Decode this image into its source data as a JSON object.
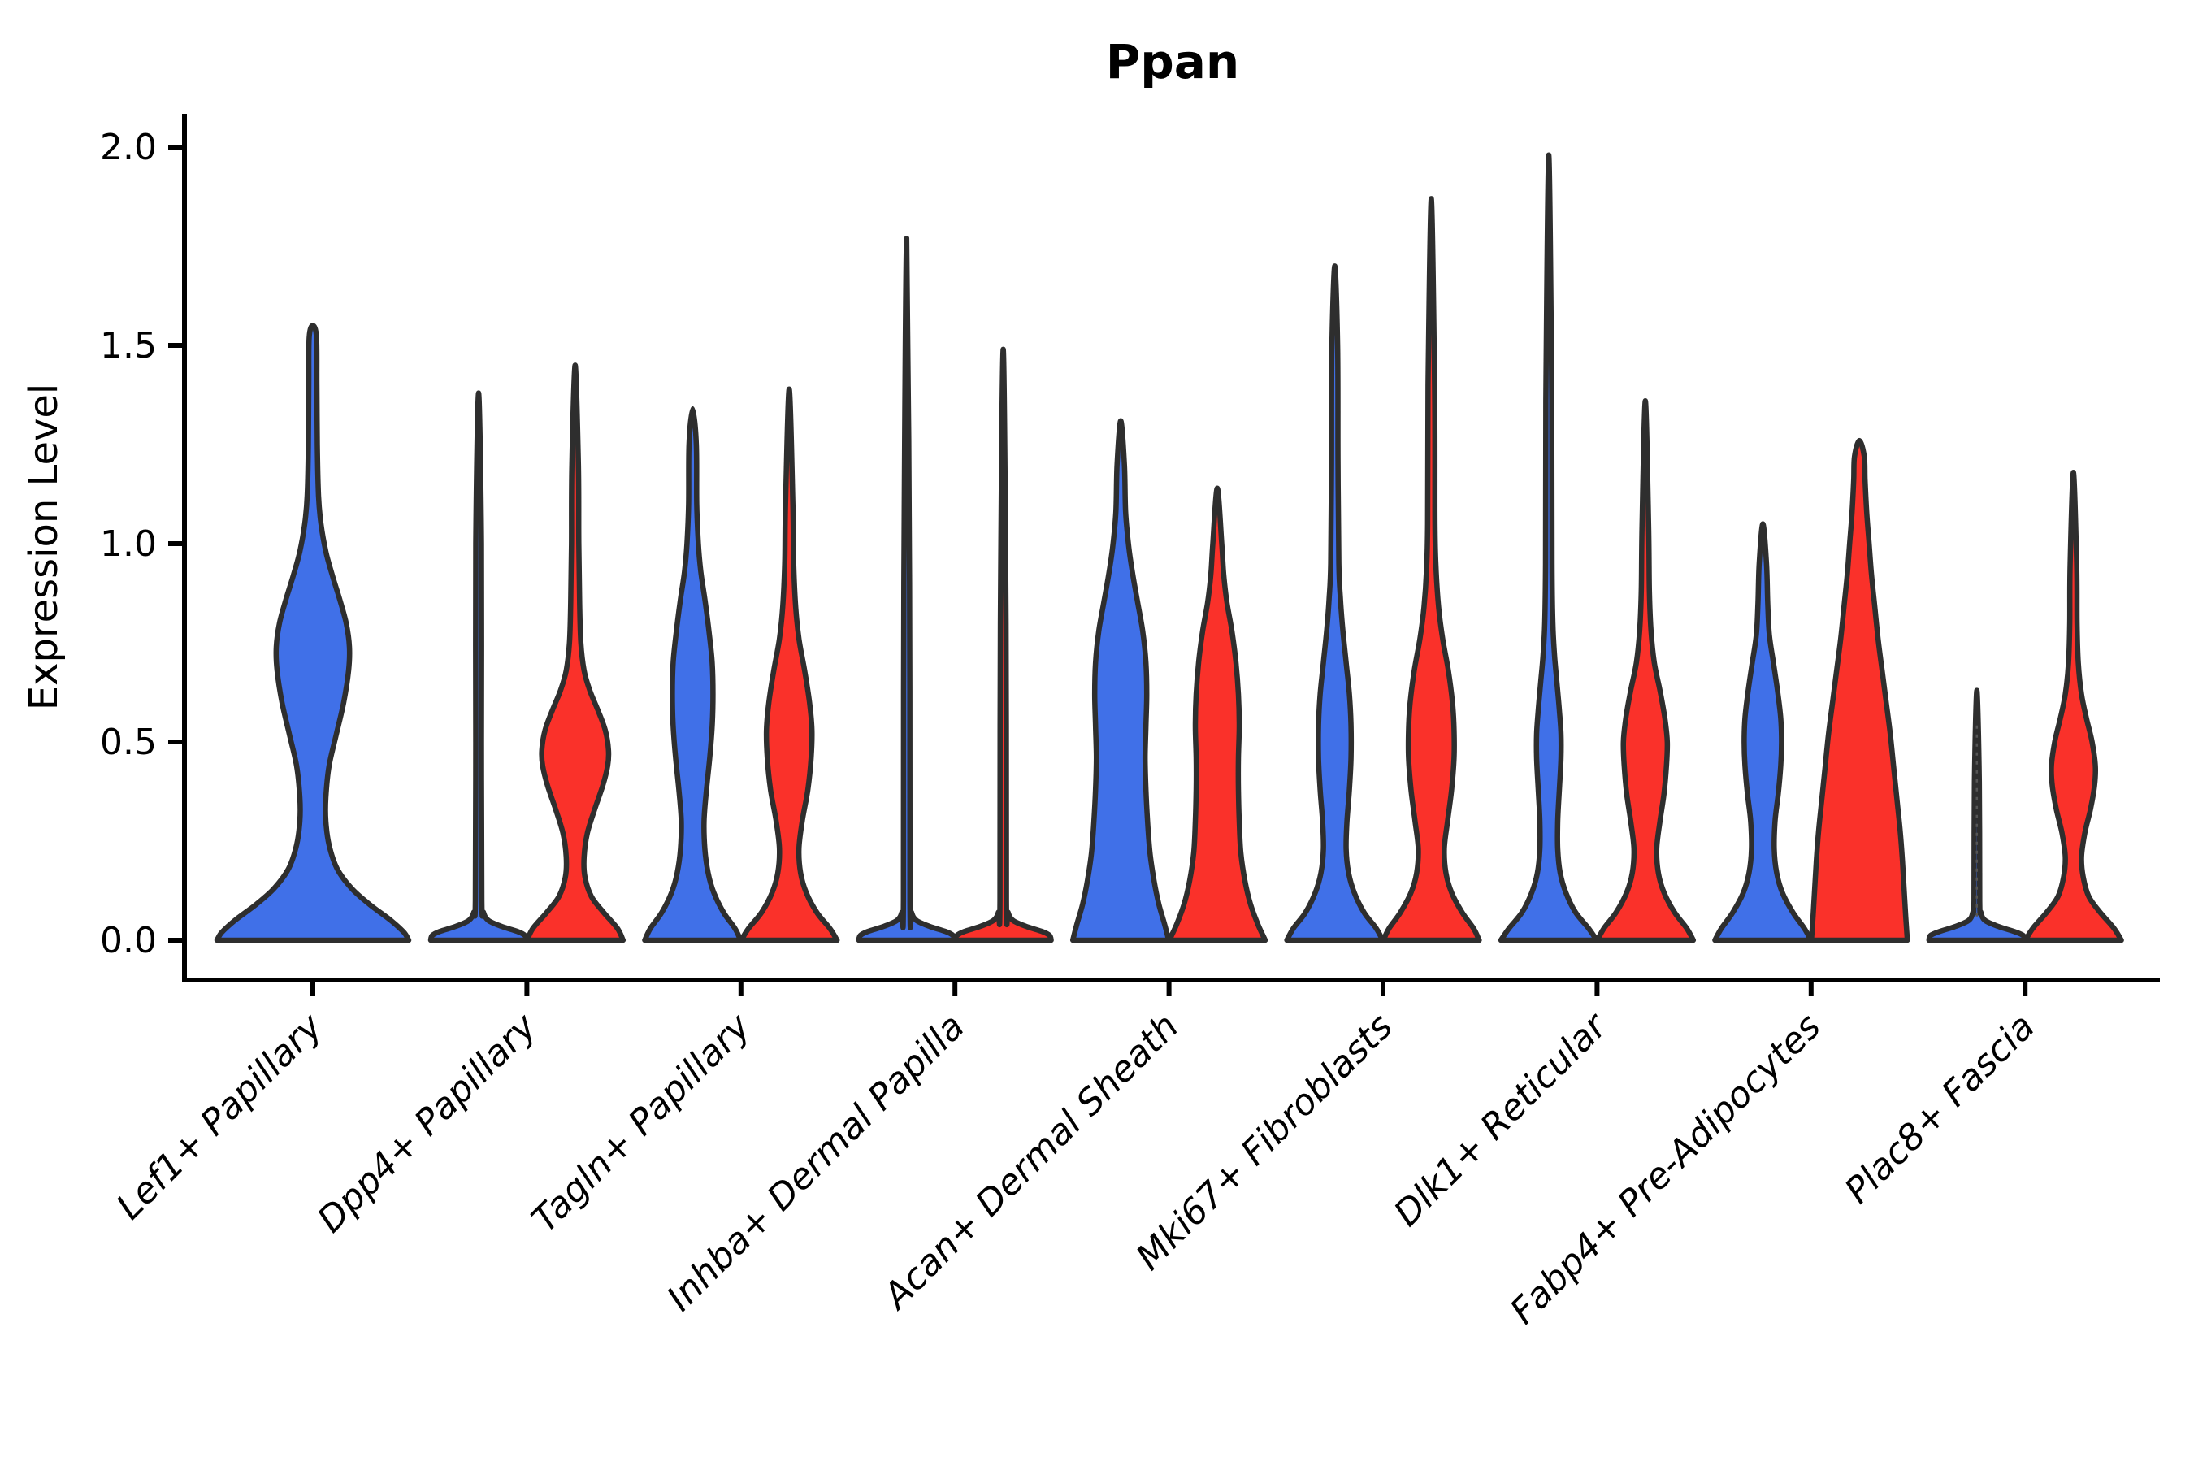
{
  "chart_data": {
    "type": "violin",
    "title": "Ppan",
    "ylabel": "Expression Level",
    "grid": false,
    "legend": "none",
    "ylim": [
      -0.1,
      2.08
    ],
    "yticks": [
      {
        "label": "0.0",
        "value": 0.0
      },
      {
        "label": "0.5",
        "value": 0.5
      },
      {
        "label": "1.0",
        "value": 1.0
      },
      {
        "label": "1.5",
        "value": 1.5
      },
      {
        "label": "2.0",
        "value": 2.0
      }
    ],
    "categories": [
      "Lef1+ Papillary",
      "Dpp4+ Papillary",
      "Tagln+ Papillary",
      "Inhba+ Dermal Papilla",
      "Acan+ Dermal Sheath",
      "Mki67+ Fibroblasts",
      "Dlk1+ Reticular",
      "Fabp4+ Pre-Adipocytes",
      "Plac8+ Fascia"
    ],
    "series": [
      {
        "name": "split-blue",
        "color": "#4070E8"
      },
      {
        "name": "split-red",
        "color": "#FA312A"
      }
    ],
    "outline_color": "#2E2E2E",
    "violins": [
      {
        "cat": 0,
        "series": "split-blue",
        "dx": 0,
        "max_value": 1.55,
        "profile": [
          [
            0,
            118
          ],
          [
            0.02,
            112
          ],
          [
            0.05,
            96
          ],
          [
            0.09,
            70
          ],
          [
            0.13,
            48
          ],
          [
            0.18,
            30
          ],
          [
            0.24,
            20
          ],
          [
            0.3,
            16
          ],
          [
            0.36,
            16
          ],
          [
            0.44,
            20
          ],
          [
            0.52,
            29
          ],
          [
            0.6,
            38
          ],
          [
            0.68,
            44
          ],
          [
            0.74,
            45
          ],
          [
            0.8,
            41
          ],
          [
            0.86,
            33
          ],
          [
            0.92,
            24
          ],
          [
            0.98,
            16
          ],
          [
            1.05,
            10
          ],
          [
            1.12,
            7
          ],
          [
            1.25,
            5.5
          ],
          [
            1.4,
            5
          ],
          [
            1.52,
            4.5
          ],
          [
            1.55,
            0
          ]
        ]
      },
      {
        "cat": 1,
        "series": "split-blue",
        "dx": -59.4,
        "max_value": 1.38,
        "profile": [
          [
            0,
            59
          ],
          [
            0.012,
            57
          ],
          [
            0.022,
            48
          ],
          [
            0.035,
            28
          ],
          [
            0.05,
            12
          ],
          [
            0.07,
            6
          ],
          [
            0.1,
            4
          ],
          [
            0.5,
            3.5
          ],
          [
            1.0,
            3.5
          ],
          [
            1.38,
            0
          ]
        ]
      },
      {
        "cat": 1,
        "series": "split-red",
        "dx": 59.4,
        "max_value": 1.45,
        "profile": [
          [
            0,
            59
          ],
          [
            0.03,
            52
          ],
          [
            0.07,
            35
          ],
          [
            0.11,
            20
          ],
          [
            0.16,
            12
          ],
          [
            0.21,
            11
          ],
          [
            0.27,
            15
          ],
          [
            0.33,
            24
          ],
          [
            0.39,
            34
          ],
          [
            0.44,
            40
          ],
          [
            0.48,
            41
          ],
          [
            0.53,
            37
          ],
          [
            0.58,
            28
          ],
          [
            0.63,
            18
          ],
          [
            0.68,
            11
          ],
          [
            0.75,
            7
          ],
          [
            0.85,
            5.5
          ],
          [
            1.0,
            4.5
          ],
          [
            1.2,
            4
          ],
          [
            1.45,
            0
          ]
        ]
      },
      {
        "cat": 2,
        "series": "split-blue",
        "dx": -59.4,
        "max_value": 1.34,
        "profile": [
          [
            0,
            59
          ],
          [
            0.03,
            52
          ],
          [
            0.07,
            38
          ],
          [
            0.12,
            26
          ],
          [
            0.17,
            19
          ],
          [
            0.23,
            15
          ],
          [
            0.3,
            14
          ],
          [
            0.38,
            17
          ],
          [
            0.46,
            21
          ],
          [
            0.54,
            24
          ],
          [
            0.62,
            25
          ],
          [
            0.7,
            24
          ],
          [
            0.78,
            20
          ],
          [
            0.86,
            15
          ],
          [
            0.93,
            10
          ],
          [
            1.0,
            7
          ],
          [
            1.1,
            5
          ],
          [
            1.25,
            4.5
          ],
          [
            1.34,
            0
          ]
        ]
      },
      {
        "cat": 2,
        "series": "split-red",
        "dx": 59.4,
        "max_value": 1.39,
        "profile": [
          [
            0,
            59
          ],
          [
            0.03,
            50
          ],
          [
            0.07,
            34
          ],
          [
            0.12,
            21
          ],
          [
            0.17,
            14
          ],
          [
            0.23,
            12
          ],
          [
            0.3,
            16
          ],
          [
            0.38,
            23
          ],
          [
            0.46,
            27
          ],
          [
            0.53,
            28
          ],
          [
            0.6,
            25
          ],
          [
            0.68,
            19
          ],
          [
            0.76,
            12
          ],
          [
            0.84,
            8
          ],
          [
            0.95,
            5.5
          ],
          [
            1.1,
            4.5
          ],
          [
            1.39,
            0
          ]
        ]
      },
      {
        "cat": 3,
        "series": "split-blue",
        "dx": -59.4,
        "max_value": 1.77,
        "profile": [
          [
            0,
            59
          ],
          [
            0.012,
            57
          ],
          [
            0.022,
            48
          ],
          [
            0.035,
            28
          ],
          [
            0.05,
            12
          ],
          [
            0.07,
            6
          ],
          [
            0.1,
            4
          ],
          [
            0.9,
            3.5
          ],
          [
            1.77,
            0
          ]
        ]
      },
      {
        "cat": 3,
        "series": "split-red",
        "dx": 59.4,
        "max_value": 1.49,
        "profile": [
          [
            0,
            59
          ],
          [
            0.012,
            57
          ],
          [
            0.022,
            48
          ],
          [
            0.035,
            28
          ],
          [
            0.05,
            12
          ],
          [
            0.07,
            6
          ],
          [
            0.1,
            4
          ],
          [
            0.8,
            3.5
          ],
          [
            1.49,
            0
          ]
        ]
      },
      {
        "cat": 4,
        "series": "split-blue",
        "dx": -59.4,
        "max_value": 1.31,
        "profile": [
          [
            0,
            59
          ],
          [
            0.04,
            54
          ],
          [
            0.09,
            47
          ],
          [
            0.15,
            41
          ],
          [
            0.22,
            36
          ],
          [
            0.3,
            33
          ],
          [
            0.38,
            31
          ],
          [
            0.46,
            30
          ],
          [
            0.54,
            31
          ],
          [
            0.62,
            32
          ],
          [
            0.7,
            31
          ],
          [
            0.78,
            27
          ],
          [
            0.85,
            21
          ],
          [
            0.92,
            15
          ],
          [
            0.99,
            10
          ],
          [
            1.08,
            6
          ],
          [
            1.2,
            4.5
          ],
          [
            1.31,
            0
          ]
        ]
      },
      {
        "cat": 4,
        "series": "split-red",
        "dx": 59.4,
        "max_value": 1.14,
        "profile": [
          [
            0,
            59
          ],
          [
            0.04,
            50
          ],
          [
            0.09,
            41
          ],
          [
            0.15,
            34
          ],
          [
            0.22,
            29
          ],
          [
            0.3,
            27
          ],
          [
            0.38,
            26
          ],
          [
            0.46,
            26
          ],
          [
            0.54,
            27
          ],
          [
            0.62,
            26
          ],
          [
            0.7,
            23
          ],
          [
            0.78,
            18
          ],
          [
            0.85,
            12
          ],
          [
            0.92,
            8
          ],
          [
            1.0,
            5.5
          ],
          [
            1.14,
            0
          ]
        ]
      },
      {
        "cat": 5,
        "series": "split-blue",
        "dx": -59.4,
        "max_value": 1.7,
        "profile": [
          [
            0,
            59
          ],
          [
            0.03,
            51
          ],
          [
            0.07,
            36
          ],
          [
            0.12,
            24
          ],
          [
            0.17,
            17
          ],
          [
            0.23,
            14
          ],
          [
            0.3,
            15
          ],
          [
            0.38,
            18
          ],
          [
            0.46,
            20
          ],
          [
            0.54,
            20
          ],
          [
            0.62,
            18
          ],
          [
            0.7,
            14
          ],
          [
            0.78,
            10
          ],
          [
            0.86,
            7
          ],
          [
            0.95,
            5
          ],
          [
            1.2,
            4
          ],
          [
            1.5,
            3.5
          ],
          [
            1.7,
            0
          ]
        ]
      },
      {
        "cat": 5,
        "series": "split-red",
        "dx": 59.4,
        "max_value": 1.87,
        "profile": [
          [
            0,
            59
          ],
          [
            0.03,
            52
          ],
          [
            0.07,
            38
          ],
          [
            0.12,
            25
          ],
          [
            0.17,
            18
          ],
          [
            0.23,
            16
          ],
          [
            0.3,
            20
          ],
          [
            0.38,
            25
          ],
          [
            0.46,
            28
          ],
          [
            0.53,
            28
          ],
          [
            0.6,
            26
          ],
          [
            0.68,
            21
          ],
          [
            0.76,
            14
          ],
          [
            0.84,
            9
          ],
          [
            0.93,
            6
          ],
          [
            1.05,
            4.5
          ],
          [
            1.4,
            4
          ],
          [
            1.87,
            0
          ]
        ]
      },
      {
        "cat": 6,
        "series": "split-blue",
        "dx": -59.4,
        "max_value": 1.98,
        "profile": [
          [
            0,
            59
          ],
          [
            0.03,
            49
          ],
          [
            0.07,
            33
          ],
          [
            0.12,
            21
          ],
          [
            0.17,
            14
          ],
          [
            0.23,
            11
          ],
          [
            0.3,
            11
          ],
          [
            0.38,
            13
          ],
          [
            0.46,
            15
          ],
          [
            0.52,
            15
          ],
          [
            0.58,
            13
          ],
          [
            0.65,
            10
          ],
          [
            0.72,
            7
          ],
          [
            0.8,
            5
          ],
          [
            0.95,
            4
          ],
          [
            1.4,
            3.5
          ],
          [
            1.98,
            0
          ]
        ]
      },
      {
        "cat": 6,
        "series": "split-red",
        "dx": 59.4,
        "max_value": 1.36,
        "profile": [
          [
            0,
            59
          ],
          [
            0.03,
            51
          ],
          [
            0.07,
            36
          ],
          [
            0.12,
            23
          ],
          [
            0.17,
            16
          ],
          [
            0.23,
            14
          ],
          [
            0.3,
            18
          ],
          [
            0.37,
            23
          ],
          [
            0.44,
            26
          ],
          [
            0.5,
            27
          ],
          [
            0.56,
            24
          ],
          [
            0.63,
            18
          ],
          [
            0.7,
            11
          ],
          [
            0.78,
            7
          ],
          [
            0.88,
            5
          ],
          [
            1.05,
            4
          ],
          [
            1.36,
            0
          ]
        ]
      },
      {
        "cat": 7,
        "series": "split-blue",
        "dx": -59.4,
        "max_value": 1.05,
        "profile": [
          [
            0,
            59
          ],
          [
            0.03,
            51
          ],
          [
            0.07,
            37
          ],
          [
            0.12,
            24
          ],
          [
            0.17,
            17
          ],
          [
            0.23,
            14
          ],
          [
            0.3,
            15
          ],
          [
            0.37,
            19
          ],
          [
            0.44,
            22
          ],
          [
            0.5,
            23
          ],
          [
            0.56,
            22
          ],
          [
            0.63,
            18
          ],
          [
            0.7,
            13
          ],
          [
            0.77,
            8
          ],
          [
            0.85,
            6
          ],
          [
            0.95,
            4.5
          ],
          [
            1.05,
            0
          ]
        ]
      },
      {
        "cat": 7,
        "series": "split-red",
        "dx": 59.4,
        "max_value": 1.26,
        "profile": [
          [
            0,
            59
          ],
          [
            0.06,
            57
          ],
          [
            0.13,
            55
          ],
          [
            0.2,
            53
          ],
          [
            0.28,
            50
          ],
          [
            0.36,
            46
          ],
          [
            0.44,
            42
          ],
          [
            0.52,
            38
          ],
          [
            0.6,
            33
          ],
          [
            0.68,
            28
          ],
          [
            0.76,
            23
          ],
          [
            0.84,
            19
          ],
          [
            0.92,
            15
          ],
          [
            1.0,
            12
          ],
          [
            1.08,
            9
          ],
          [
            1.16,
            7
          ],
          [
            1.22,
            6
          ],
          [
            1.26,
            0
          ]
        ]
      },
      {
        "cat": 8,
        "series": "split-blue",
        "dx": -59.4,
        "max_value": 0.63,
        "dotted": true,
        "profile": [
          [
            0,
            59
          ],
          [
            0.012,
            57
          ],
          [
            0.022,
            46
          ],
          [
            0.035,
            26
          ],
          [
            0.05,
            10
          ],
          [
            0.07,
            5
          ],
          [
            0.1,
            3.5
          ],
          [
            0.4,
            3
          ],
          [
            0.63,
            0
          ]
        ]
      },
      {
        "cat": 8,
        "series": "split-red",
        "dx": 59.4,
        "max_value": 1.18,
        "profile": [
          [
            0,
            59
          ],
          [
            0.03,
            50
          ],
          [
            0.07,
            33
          ],
          [
            0.11,
            19
          ],
          [
            0.16,
            12
          ],
          [
            0.21,
            10
          ],
          [
            0.27,
            14
          ],
          [
            0.33,
            21
          ],
          [
            0.39,
            26
          ],
          [
            0.44,
            27
          ],
          [
            0.5,
            23
          ],
          [
            0.56,
            16
          ],
          [
            0.62,
            10
          ],
          [
            0.7,
            6
          ],
          [
            0.8,
            4.5
          ],
          [
            0.95,
            4
          ],
          [
            1.18,
            0
          ]
        ]
      }
    ]
  }
}
